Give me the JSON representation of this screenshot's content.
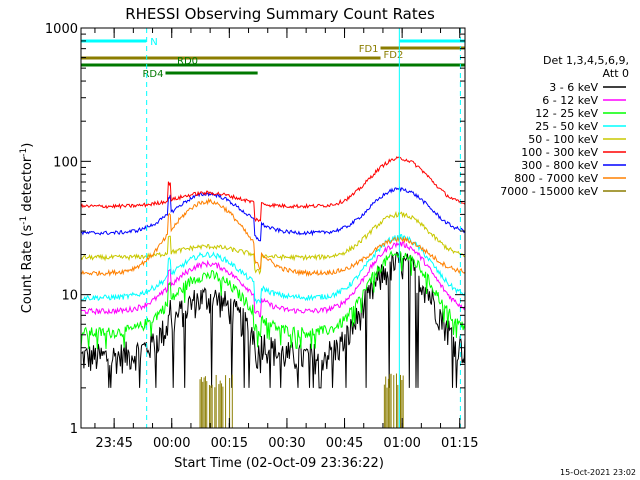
{
  "chart_data": {
    "type": "line",
    "title": "RHESSI Observing Summary Count Rates",
    "xlabel": "Start Time (02-Oct-09 23:36:22)",
    "ylabel_main": "Count Rate (s",
    "ylabel_sup1": "-1",
    "ylabel_mid": " detector",
    "ylabel_sup2": "-1",
    "ylabel_end": ")",
    "yscale": "log",
    "ylim": [
      1,
      1000
    ],
    "xlim_minutes": [
      0,
      100
    ],
    "y_ticks": [
      {
        "value": 1,
        "label": "1"
      },
      {
        "value": 10,
        "label": "10"
      },
      {
        "value": 100,
        "label": "100"
      },
      {
        "value": 1000,
        "label": "1000"
      }
    ],
    "x_ticks": [
      {
        "minute": 8.63,
        "label": "23:45"
      },
      {
        "minute": 23.63,
        "label": "00:00"
      },
      {
        "minute": 38.63,
        "label": "00:15"
      },
      {
        "minute": 53.63,
        "label": "00:30"
      },
      {
        "minute": 68.63,
        "label": "00:45"
      },
      {
        "minute": 83.63,
        "label": "01:00"
      },
      {
        "minute": 98.63,
        "label": "01:15"
      }
    ],
    "legend_title_1": "Det 1,3,4,5,6,9,",
    "legend_title_2": "Att 0",
    "series": [
      {
        "name": "3 - 6 keV",
        "color": "#000000",
        "base": 3.4,
        "peak1": 9.5,
        "peak2": 17,
        "noise": 0.09
      },
      {
        "name": "6 - 12 keV",
        "color": "#ff00ff",
        "base": 7.5,
        "peak1": 17,
        "peak2": 24,
        "noise": 0.03
      },
      {
        "name": "12 - 25 keV",
        "color": "#00ff00",
        "base": 5.2,
        "peak1": 14,
        "peak2": 20,
        "noise": 0.06
      },
      {
        "name": "25 - 50 keV",
        "color": "#00ffff",
        "base": 9.5,
        "peak1": 20,
        "peak2": 27,
        "noise": 0.03
      },
      {
        "name": "50 - 100 keV",
        "color": "#c8c800",
        "base": 19,
        "peak1": 23,
        "peak2": 40,
        "noise": 0.025
      },
      {
        "name": "100 - 300 keV",
        "color": "#ff0000",
        "base": 46,
        "peak1": 58,
        "peak2": 105,
        "noise": 0.02
      },
      {
        "name": "300 - 800 keV",
        "color": "#0000ff",
        "base": 29,
        "peak1": 57,
        "peak2": 62,
        "noise": 0.02
      },
      {
        "name": "800 - 7000 keV",
        "color": "#ff8000",
        "base": 14.5,
        "peak1": 50,
        "peak2": 26,
        "noise": 0.025
      },
      {
        "name": "7000 - 15000 keV",
        "color": "#8b7d00"
      }
    ],
    "flags": [
      {
        "label": "N",
        "color": "#00ffff",
        "start": 0,
        "end": 17,
        "row": 0
      },
      {
        "label": "",
        "color": "#00ffff",
        "start": 83,
        "end": 100,
        "row": 0
      },
      {
        "label": "FD1",
        "color": "#8b7d00",
        "start": 78,
        "end": 100,
        "row": 1
      },
      {
        "label": "FD2",
        "color": "#8b7d00",
        "start": 0,
        "end": 78,
        "row": 2
      },
      {
        "label": "RD0",
        "color": "#007800",
        "start": 0,
        "end": 100,
        "row": 3
      },
      {
        "label": "RD4",
        "color": "#007800",
        "start": 22,
        "end": 46,
        "row": 4
      }
    ],
    "vlines": [
      {
        "minute": 17.1,
        "style": "dashed",
        "color": "#00ffff"
      },
      {
        "minute": 82.9,
        "style": "solid",
        "color": "#00ffff"
      },
      {
        "minute": 98.8,
        "style": "dashed",
        "color": "#00ffff"
      }
    ],
    "timestamp": "15-Oct-2021 23:02"
  }
}
